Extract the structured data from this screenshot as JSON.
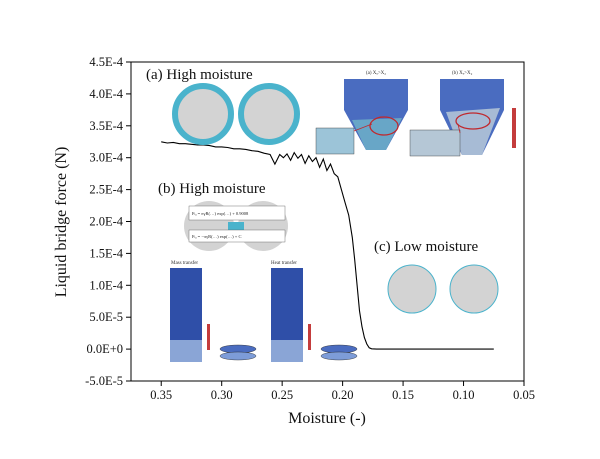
{
  "chart_data": {
    "type": "line",
    "title": "",
    "xlabel": "Moisture (-)",
    "ylabel": "Liquid bridge force (N)",
    "xlim": [
      0.375,
      0.05
    ],
    "ylim": [
      -5e-05,
      0.00045
    ],
    "x_ticks": [
      0.35,
      0.3,
      0.25,
      0.2,
      0.15,
      0.1,
      0.05
    ],
    "x_tick_labels": [
      "0.35",
      "0.30",
      "0.25",
      "0.20",
      "0.15",
      "0.10",
      "0.05"
    ],
    "y_ticks": [
      -5e-05,
      0,
      5e-05,
      0.0001,
      0.00015,
      0.0002,
      0.00025,
      0.0003,
      0.00035,
      0.0004,
      0.00045
    ],
    "y_tick_labels": [
      "-5.0E-5",
      "0.0E+0",
      "5.0E-5",
      "1.0E-4",
      "1.5E-4",
      "2.0E-4",
      "2.5E-4",
      "3.0E-4",
      "3.5E-4",
      "4.0E-4",
      "4.5E-4"
    ],
    "series": [
      {
        "name": "Liquid bridge force",
        "color": "#000000",
        "x": [
          0.35,
          0.345,
          0.34,
          0.335,
          0.33,
          0.325,
          0.32,
          0.315,
          0.31,
          0.305,
          0.3,
          0.295,
          0.29,
          0.285,
          0.28,
          0.275,
          0.27,
          0.265,
          0.26,
          0.256,
          0.252,
          0.249,
          0.246,
          0.243,
          0.24,
          0.237,
          0.234,
          0.231,
          0.228,
          0.225,
          0.222,
          0.219,
          0.216,
          0.213,
          0.21,
          0.207,
          0.204,
          0.201,
          0.198,
          0.195,
          0.192,
          0.19,
          0.188,
          0.186,
          0.184,
          0.182,
          0.18,
          0.178,
          0.176,
          0.172,
          0.165,
          0.15,
          0.13,
          0.11,
          0.09,
          0.075
        ],
        "y": [
          0.000325,
          0.000323,
          0.000324,
          0.000322,
          0.000322,
          0.000321,
          0.00032,
          0.00032,
          0.000319,
          0.000317,
          0.000317,
          0.000316,
          0.000314,
          0.000314,
          0.000313,
          0.000311,
          0.00031,
          0.000307,
          0.000305,
          0.00029,
          0.000305,
          0.0003,
          0.000306,
          0.000296,
          0.000308,
          0.000299,
          0.000305,
          0.000291,
          0.000303,
          0.000294,
          0.0003,
          0.000285,
          0.000298,
          0.00028,
          0.00029,
          0.000275,
          0.00027,
          0.00025,
          0.00023,
          0.00021,
          0.000175,
          0.00014,
          0.0001,
          6e-05,
          3.5e-05,
          1.8e-05,
          8e-06,
          2e-06,
          5e-07,
          0.0,
          0.0,
          0.0,
          0.0,
          0.0,
          0.0,
          0.0
        ]
      }
    ],
    "annotations": [
      {
        "id": "a",
        "text": "(a) High moisture"
      },
      {
        "id": "b",
        "text": "(b) High moisture"
      },
      {
        "id": "c",
        "text": "(c) Low moisture"
      }
    ]
  },
  "insets": {
    "inset_a_left_label": "(a) Xₓ>X₂",
    "inset_a_right_label": "(b) Xₓ>X₂",
    "inset_b_eq1": "Fₗₐ = πγR(…) exp(…) + 0.9008",
    "inset_b_eq2": "Fₗₐ = −πγR(…) exp(…) + C",
    "mass_transfer_label": "Mass transfer",
    "heat_transfer_label": "Heat transfer"
  },
  "colors": {
    "ring": "#4ab3cc",
    "particle_fill": "#d3d3d3",
    "inset_blue": "#2f4fa8"
  }
}
